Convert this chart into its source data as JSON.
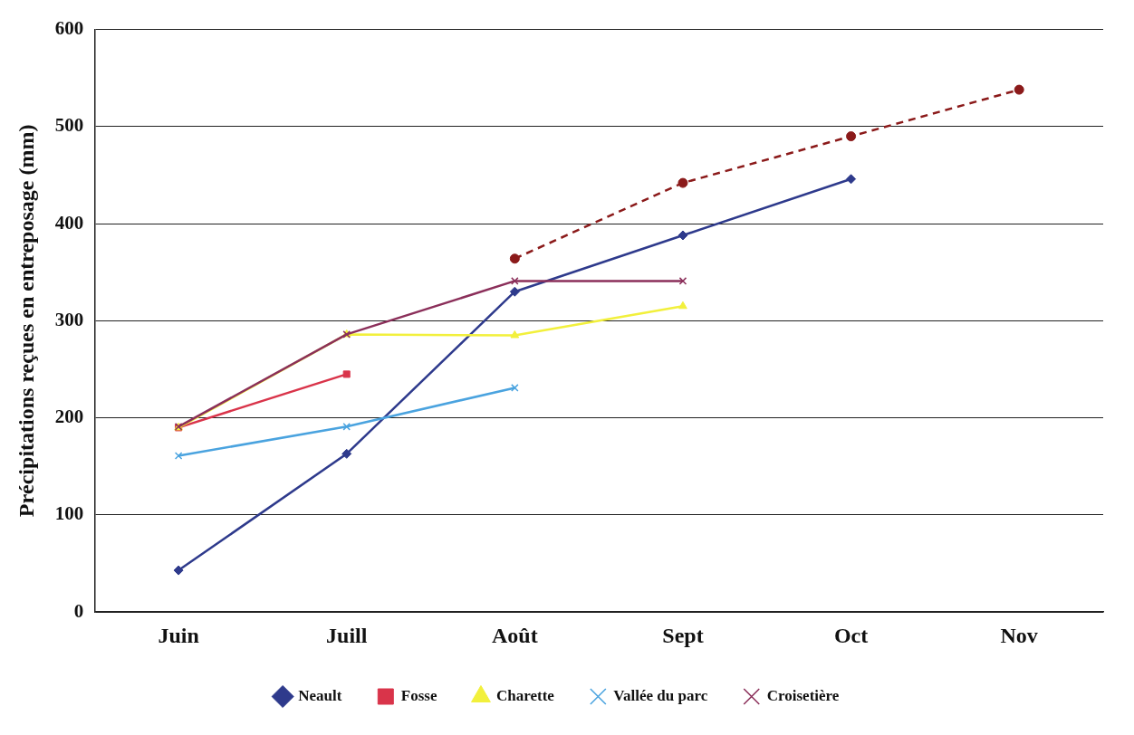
{
  "chart_data": {
    "type": "line",
    "categories": [
      "Juin",
      "Juill",
      "Août",
      "Sept",
      "Oct",
      "Nov"
    ],
    "ylabel": "Précipitations reçues en entreposage (mm)",
    "ylim": [
      0,
      600
    ],
    "yticks": [
      0,
      100,
      200,
      300,
      400,
      500,
      600
    ],
    "grid": "y",
    "legend": "bottom",
    "line_style": "solid",
    "series": [
      {
        "name": "Neault",
        "color": "#2e3a8c",
        "marker": "diamond",
        "values": [
          43,
          163,
          330,
          388,
          446,
          null
        ]
      },
      {
        "name": "Fosse",
        "color": "#d9344a",
        "marker": "square",
        "values": [
          190,
          245,
          null,
          null,
          null,
          null
        ]
      },
      {
        "name": "Charette",
        "color": "#f2f03c",
        "marker": "triangle",
        "values": [
          190,
          286,
          285,
          315,
          null,
          null
        ]
      },
      {
        "name": "Vallée du parc",
        "color": "#4aa3df",
        "marker": "cross",
        "values": [
          161,
          191,
          231,
          null,
          null,
          null
        ]
      },
      {
        "name": "Croisetière",
        "color": "#8b2f5a",
        "marker": "cross",
        "values": [
          191,
          286,
          341,
          341,
          null,
          null
        ]
      },
      {
        "color": "#8b1a1a",
        "marker": "circle",
        "line_style": "dashed",
        "values": [
          null,
          null,
          364,
          442,
          490,
          538
        ]
      }
    ]
  }
}
